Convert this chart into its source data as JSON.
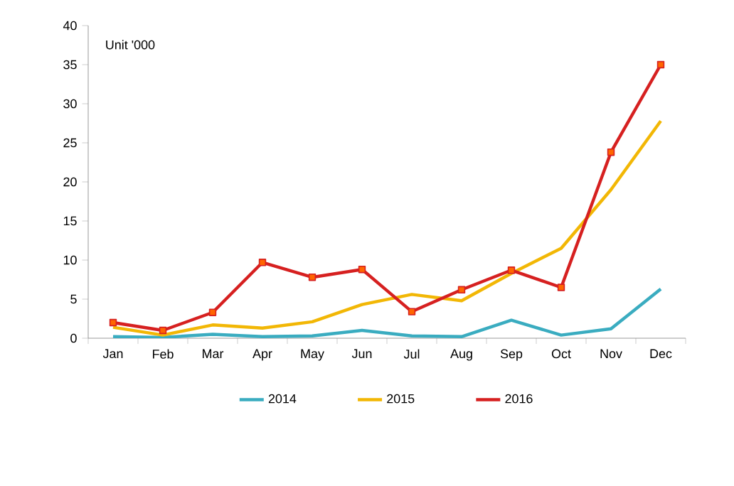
{
  "chart_data": {
    "type": "line",
    "categories": [
      "Jan",
      "Feb",
      "Mar",
      "Apr",
      "May",
      "Jun",
      "Jul",
      "Aug",
      "Sep",
      "Oct",
      "Nov",
      "Dec"
    ],
    "ylim": [
      0,
      40
    ],
    "yticks": [
      0,
      5,
      10,
      15,
      20,
      25,
      30,
      35,
      40
    ],
    "legend": "bottom",
    "grid": false,
    "line_style": "solid",
    "annotations": [
      "Unit '000"
    ],
    "series": [
      {
        "name": "2014",
        "color": "#3aacc0",
        "marker": "none",
        "values": [
          0.2,
          0.1,
          0.5,
          0.2,
          0.3,
          1.0,
          0.3,
          0.2,
          2.3,
          0.4,
          1.2,
          6.3
        ]
      },
      {
        "name": "2015",
        "color": "#f2b705",
        "marker": "none",
        "values": [
          1.4,
          0.4,
          1.7,
          1.3,
          2.1,
          4.3,
          5.6,
          4.8,
          8.3,
          11.5,
          19.0,
          27.8
        ]
      },
      {
        "name": "2016",
        "color": "#d62020",
        "marker": "square",
        "values": [
          2.0,
          1.0,
          3.3,
          9.7,
          7.8,
          8.8,
          3.4,
          6.2,
          8.7,
          6.5,
          23.8,
          35.0
        ]
      }
    ]
  }
}
